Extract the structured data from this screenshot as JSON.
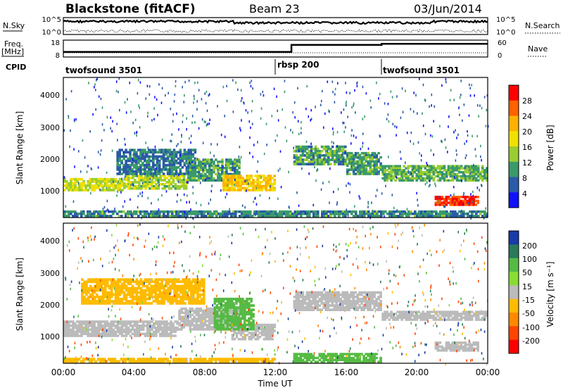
{
  "header": {
    "radar": "Blackstone (fitACF)",
    "beam": "Beam 23",
    "date": "03/Jun/2014"
  },
  "top_panels": {
    "nsky_label": "N.Sky",
    "nsky_left_ticks": [
      "10^5",
      "10^0"
    ],
    "nsky_right_ticks": [
      "10^5",
      "10^0"
    ],
    "nsearch_label": "N.Search",
    "freq_label": "Freq.",
    "freq_unit": "[MHz]",
    "freq_ticks": [
      "18",
      "8"
    ],
    "nave_ticks": [
      "60",
      "0"
    ],
    "nave_label": "Nave",
    "cpid_label": "CPID",
    "cpid_segments": [
      {
        "name": "twofsound 3501",
        "start_hour": 0
      },
      {
        "name": "rbsp 200",
        "start_hour": 12
      },
      {
        "name": "twofsound 3501",
        "start_hour": 18
      }
    ],
    "freq_steps": [
      {
        "from_hour": 0,
        "to_hour": 12.9,
        "level": 0.3
      },
      {
        "from_hour": 12.9,
        "to_hour": 18,
        "level": 0.72
      },
      {
        "from_hour": 18,
        "to_hour": 24,
        "level": 0.78
      }
    ]
  },
  "axes": {
    "ylabel": "Slant Range [km]",
    "yticks": [
      "4000",
      "3000",
      "2000",
      "1000"
    ],
    "xlabel": "Time UT",
    "xticks": [
      "00:00",
      "04:00",
      "08:00",
      "12:00",
      "16:00",
      "20:00",
      "00:00"
    ]
  },
  "power_colorbar": {
    "label": "Power [dB]",
    "ticks": [
      "28",
      "24",
      "20",
      "16",
      "12",
      "8",
      "4"
    ],
    "colors": [
      "#ff0000",
      "#ff6000",
      "#ffb000",
      "#f0e000",
      "#9acd32",
      "#3a9a6a",
      "#2a5aa8",
      "#1010ff"
    ]
  },
  "velocity_colorbar": {
    "label": "Velocity [m s⁻¹]",
    "ticks": [
      "200",
      "100",
      "50",
      "15",
      "-15",
      "-50",
      "-100",
      "-200"
    ],
    "colors": [
      "#1a3aaa",
      "#2a7a5a",
      "#55bb44",
      "#88dd33",
      "#bbbbbb",
      "#ffbb00",
      "#ff8800",
      "#ff4400",
      "#ff0000"
    ]
  },
  "chart_data": {
    "type": "heatmap",
    "x_range_hours": [
      0,
      24
    ],
    "y_range_km": [
      180,
      4500
    ],
    "power_regions": [
      {
        "t0": 0,
        "t1": 3.5,
        "r0": 1000,
        "r1": 1400,
        "level": 0.5
      },
      {
        "t0": 3.5,
        "t1": 7,
        "r0": 1050,
        "r1": 1500,
        "level": 0.45
      },
      {
        "t0": 3,
        "t1": 7.5,
        "r0": 1500,
        "r1": 2300,
        "level": 0.2
      },
      {
        "t0": 7,
        "t1": 10,
        "r0": 1300,
        "r1": 2000,
        "level": 0.3
      },
      {
        "t0": 9,
        "t1": 12,
        "r0": 1000,
        "r1": 1500,
        "level": 0.65
      },
      {
        "t0": 13,
        "t1": 16,
        "r0": 1800,
        "r1": 2400,
        "level": 0.3
      },
      {
        "t0": 16,
        "t1": 18,
        "r0": 1500,
        "r1": 2200,
        "level": 0.3
      },
      {
        "t0": 18,
        "t1": 24,
        "r0": 1300,
        "r1": 1800,
        "level": 0.35
      },
      {
        "t0": 21,
        "t1": 23.5,
        "r0": 550,
        "r1": 850,
        "level": 0.95
      },
      {
        "t0": 0,
        "t1": 24,
        "r0": 200,
        "r1": 400,
        "level": 0.25
      }
    ],
    "velocity_regions": [
      {
        "t0": 0,
        "t1": 6.5,
        "r0": 1000,
        "r1": 1500,
        "vel": 0
      },
      {
        "t0": 6.5,
        "t1": 10,
        "r0": 1200,
        "r1": 1900,
        "vel": 0
      },
      {
        "t0": 9.5,
        "t1": 12,
        "r0": 900,
        "r1": 1400,
        "vel": 0
      },
      {
        "t0": 13,
        "t1": 18,
        "r0": 1800,
        "r1": 2400,
        "vel": 0
      },
      {
        "t0": 18,
        "t1": 24,
        "r0": 1500,
        "r1": 1800,
        "vel": 0
      },
      {
        "t0": 21,
        "t1": 23.5,
        "r0": 550,
        "r1": 850,
        "vel": 0
      },
      {
        "t0": 1,
        "t1": 8,
        "r0": 2000,
        "r1": 2800,
        "vel": -30
      },
      {
        "t0": 8.5,
        "t1": 10.8,
        "r0": 1200,
        "r1": 2200,
        "vel": 40
      },
      {
        "t0": 0,
        "t1": 12,
        "r0": 200,
        "r1": 350,
        "vel": -40
      },
      {
        "t0": 13,
        "t1": 18,
        "r0": 200,
        "r1": 500,
        "vel": 40
      }
    ]
  }
}
